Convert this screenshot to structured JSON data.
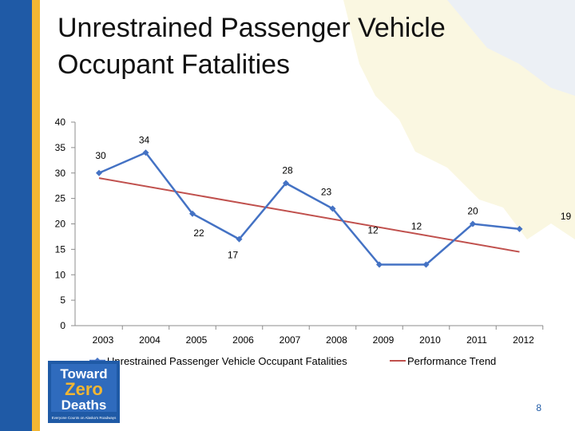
{
  "slide": {
    "title_line1": "Unrestrained Passenger Vehicle",
    "title_line2": "Occupant Fatalities",
    "page_number": "8"
  },
  "logo": {
    "line1": "Toward",
    "line2": "Zero",
    "line3": "Deaths",
    "tagline": "Everyone Counts on Alaska's Roadways"
  },
  "colors": {
    "series_line": "#4472c4",
    "trend_line": "#c0504d",
    "left_bar": "#1f5aa6",
    "left_bar_accent": "#f2b632"
  },
  "chart_data": {
    "type": "line",
    "categories": [
      "2003",
      "2004",
      "2005",
      "2006",
      "2007",
      "2008",
      "2009",
      "2010",
      "2011",
      "2012"
    ],
    "series": [
      {
        "name": "Unrestrained Passenger Vehicle Occupant Fatalities",
        "values": [
          30,
          34,
          22,
          17,
          28,
          23,
          12,
          12,
          20,
          19
        ],
        "labels": [
          "30",
          "34",
          "22",
          "17",
          "28",
          "23",
          "12",
          "12",
          "20",
          "19"
        ],
        "marker": "diamond"
      },
      {
        "name": "Performance Trend",
        "type": "linear-trend",
        "start": 29,
        "end": 14.5
      }
    ],
    "ylim": [
      0,
      40
    ],
    "yticks": [
      "0",
      "5",
      "10",
      "15",
      "20",
      "25",
      "30",
      "35",
      "40"
    ],
    "grid": false,
    "legend": "bottom"
  }
}
